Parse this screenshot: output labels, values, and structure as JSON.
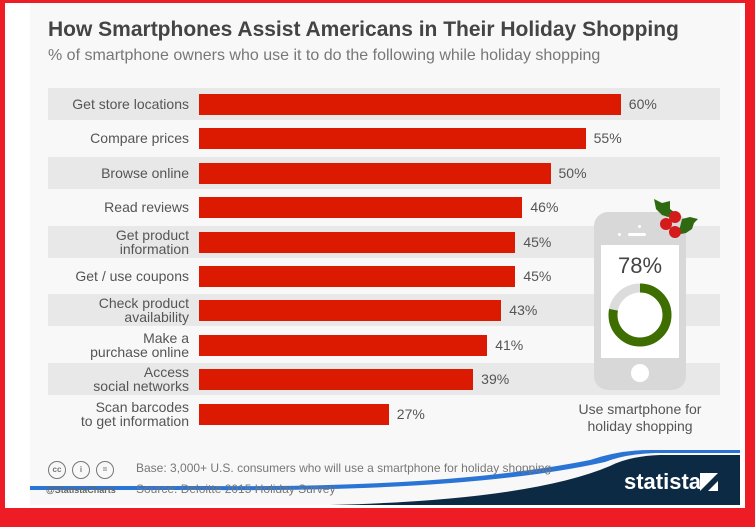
{
  "chart_data": {
    "type": "bar",
    "orientation": "horizontal",
    "title": "How Smartphones Assist Americans in Their Holiday Shopping",
    "subtitle": "% of smartphone owners who use it to do the following while holiday shopping",
    "categories": [
      "Get store locations",
      "Compare prices",
      "Browse online",
      "Read reviews",
      "Get product information",
      "Get / use coupons",
      "Check product availability",
      "Make a purchase online",
      "Access social networks",
      "Scan barcodes to get information"
    ],
    "category_lines": [
      [
        "Get store locations"
      ],
      [
        "Compare prices"
      ],
      [
        "Browse online"
      ],
      [
        "Read reviews"
      ],
      [
        "Get product",
        "information"
      ],
      [
        "Get / use coupons"
      ],
      [
        "Check product",
        "availability"
      ],
      [
        "Make a",
        "purchase online"
      ],
      [
        "Access",
        "social networks"
      ],
      [
        "Scan barcodes",
        "to get information"
      ]
    ],
    "values": [
      60,
      55,
      50,
      46,
      45,
      45,
      43,
      41,
      39,
      27
    ],
    "value_labels": [
      "60%",
      "55%",
      "50%",
      "46%",
      "45%",
      "45%",
      "43%",
      "41%",
      "39%",
      "27%"
    ],
    "xlim": [
      0,
      100
    ],
    "bar_color": "#dc1a02",
    "grid": false,
    "highlight": {
      "value": 78,
      "label": "78%",
      "caption_lines": [
        "Use smartphone for",
        "holiday shopping"
      ],
      "ring_color": "#3f6e00",
      "ring_track_color": "#dcdcdc"
    }
  },
  "footer": {
    "base": "Base: 3,000+ U.S. consumers who will use a smartphone for holiday shopping",
    "source": "Source: Deloitte 2015 Holiday Survey",
    "handle": "@StatistaCharts",
    "license_icons": [
      "cc",
      "by",
      "nd"
    ],
    "brand": "statista"
  },
  "colors": {
    "border": "#ee1c25",
    "footer_band": "#0d2a44",
    "footer_accent": "#2a74d6"
  }
}
